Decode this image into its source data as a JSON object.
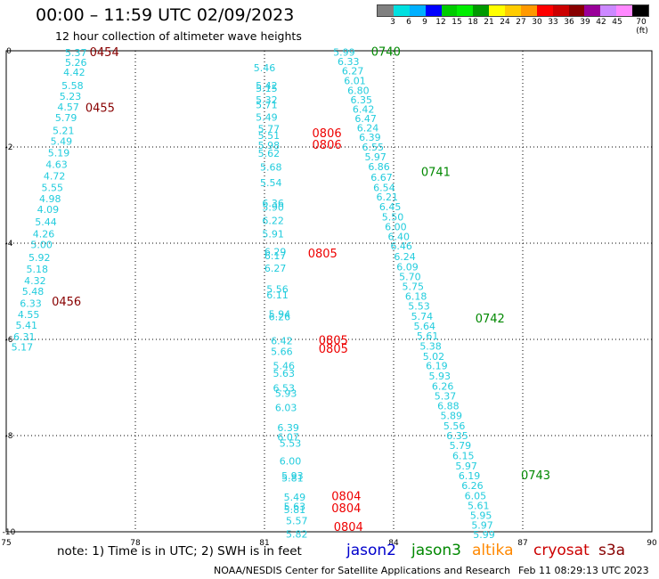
{
  "title": "00:00 – 11:59 UTC 02/09/2023",
  "subtitle": "12 hour collection of altimeter wave heights",
  "note": "note:  1) Time is in UTC; 2) SWH is in feet",
  "satellites": [
    {
      "name": "jason2",
      "color": "#0000cc"
    },
    {
      "name": "jason3",
      "color": "#008800"
    },
    {
      "name": "altika",
      "color": "#ff8800"
    },
    {
      "name": "cryosat",
      "color": "#cc0000"
    },
    {
      "name": "s3a",
      "color": "#880000"
    }
  ],
  "credit": "NOAA/NESDIS Center for Satellite Applications and Research",
  "timestamp": "Feb 11 08:29:13 UTC 2023",
  "colorbar": {
    "colors": [
      "#808080",
      "#00e0e0",
      "#00b0ff",
      "#0000ff",
      "#00cc00",
      "#00ee00",
      "#009900",
      "#ffff00",
      "#ffcc00",
      "#ff9900",
      "#ff0000",
      "#cc0000",
      "#880000",
      "#990099",
      "#cc88ff",
      "#ff88ff",
      "#000000"
    ],
    "labels": [
      "3",
      "6",
      "9",
      "12",
      "15",
      "18",
      "21",
      "24",
      "27",
      "30",
      "33",
      "36",
      "39",
      "42",
      "45",
      "70 (ft)"
    ]
  },
  "chart_data": {
    "type": "scatter",
    "title": "00:00 – 11:59 UTC 02/09/2023",
    "subtitle": "12 hour collection of altimeter wave heights",
    "xlim": [
      75,
      90
    ],
    "ylim": [
      -10,
      0
    ],
    "xticks": [
      "75",
      "78",
      "81",
      "84",
      "87",
      "90"
    ],
    "yticks": [
      "0",
      "-2",
      "-4",
      "-6",
      "-8",
      "-10"
    ],
    "grid": true,
    "series": [
      {
        "name": "swh",
        "color": "#22ccdd",
        "points": [
          [
            76.62,
            -0.04,
            "5.37"
          ],
          [
            76.62,
            -0.24,
            "5.26"
          ],
          [
            76.58,
            -0.44,
            "4.42"
          ],
          [
            76.54,
            -0.72,
            "5.58"
          ],
          [
            76.49,
            -0.94,
            "5.23"
          ],
          [
            76.44,
            -1.17,
            "4.57"
          ],
          [
            76.39,
            -1.39,
            "5.79"
          ],
          [
            76.33,
            -1.66,
            "5.21"
          ],
          [
            76.28,
            -1.88,
            "5.49"
          ],
          [
            76.22,
            -2.12,
            "5.19"
          ],
          [
            76.17,
            -2.36,
            "4.63"
          ],
          [
            76.12,
            -2.6,
            "4.72"
          ],
          [
            76.07,
            -2.84,
            "5.55"
          ],
          [
            76.02,
            -3.07,
            "4.98"
          ],
          [
            75.97,
            -3.3,
            "4.09"
          ],
          [
            75.92,
            -3.56,
            "5.44"
          ],
          [
            75.87,
            -3.81,
            "4.26"
          ],
          [
            75.82,
            -4.03,
            "5.00"
          ],
          [
            75.77,
            -4.3,
            "5.92"
          ],
          [
            75.72,
            -4.54,
            "5.18"
          ],
          [
            75.67,
            -4.78,
            "4.32"
          ],
          [
            75.62,
            -5.0,
            "5.48"
          ],
          [
            75.57,
            -5.25,
            "6.33"
          ],
          [
            75.52,
            -5.48,
            "4.55"
          ],
          [
            75.47,
            -5.7,
            "5.41"
          ],
          [
            75.42,
            -5.94,
            "6.31"
          ],
          [
            75.37,
            -6.16,
            "5.17"
          ],
          [
            81.0,
            -0.35,
            "5.46"
          ],
          [
            81.05,
            -0.72,
            "5.42"
          ],
          [
            81.05,
            -0.78,
            "5.15"
          ],
          [
            81.05,
            -1.02,
            "5.32"
          ],
          [
            81.05,
            -1.12,
            "5.71"
          ],
          [
            81.05,
            -1.38,
            "5.49"
          ],
          [
            81.1,
            -1.62,
            "5.77"
          ],
          [
            81.1,
            -1.76,
            "5.51"
          ],
          [
            81.1,
            -1.96,
            "5.98"
          ],
          [
            81.1,
            -2.13,
            "5.62"
          ],
          [
            81.15,
            -2.42,
            "5.68"
          ],
          [
            81.15,
            -2.74,
            "5.54"
          ],
          [
            81.2,
            -3.17,
            "6.36"
          ],
          [
            81.2,
            -3.25,
            "5.90"
          ],
          [
            81.2,
            -3.53,
            "6.22"
          ],
          [
            81.2,
            -3.81,
            "5.91"
          ],
          [
            81.25,
            -4.18,
            "6.29"
          ],
          [
            81.25,
            -4.26,
            "6.17"
          ],
          [
            81.25,
            -4.52,
            "6.27"
          ],
          [
            81.3,
            -4.95,
            "5.56"
          ],
          [
            81.3,
            -5.07,
            "6.11"
          ],
          [
            81.35,
            -5.47,
            "5.94"
          ],
          [
            81.35,
            -5.53,
            "6.26"
          ],
          [
            81.4,
            -6.03,
            "6.42"
          ],
          [
            81.4,
            -6.25,
            "5.66"
          ],
          [
            81.45,
            -6.55,
            "5.46"
          ],
          [
            81.45,
            -6.7,
            "5.63"
          ],
          [
            81.45,
            -7.01,
            "6.53"
          ],
          [
            81.5,
            -7.12,
            "5.93"
          ],
          [
            81.5,
            -7.42,
            "6.03"
          ],
          [
            81.55,
            -7.83,
            "6.39"
          ],
          [
            81.55,
            -8.03,
            "6.07"
          ],
          [
            81.6,
            -8.16,
            "5.53"
          ],
          [
            81.6,
            -8.53,
            "6.00"
          ],
          [
            81.65,
            -8.83,
            "5.93"
          ],
          [
            81.65,
            -8.88,
            "5.81"
          ],
          [
            81.7,
            -9.28,
            "5.49"
          ],
          [
            81.7,
            -9.47,
            "5.63"
          ],
          [
            81.7,
            -9.54,
            "5.81"
          ],
          [
            81.75,
            -9.77,
            "5.57"
          ],
          [
            81.75,
            -10.05,
            "5.82"
          ],
          [
            82.85,
            -0.03,
            "5.99"
          ],
          [
            82.95,
            -0.22,
            "6.33"
          ],
          [
            83.05,
            -0.42,
            "6.27"
          ],
          [
            83.1,
            -0.62,
            "6.01"
          ],
          [
            83.18,
            -0.82,
            "6.80"
          ],
          [
            83.25,
            -1.02,
            "6.35"
          ],
          [
            83.3,
            -1.21,
            "6.42"
          ],
          [
            83.35,
            -1.41,
            "6.47"
          ],
          [
            83.4,
            -1.6,
            "6.24"
          ],
          [
            83.45,
            -1.8,
            "6.39"
          ],
          [
            83.52,
            -2.0,
            "6.55"
          ],
          [
            83.58,
            -2.2,
            "5.97"
          ],
          [
            83.66,
            -2.41,
            "6.86"
          ],
          [
            83.72,
            -2.63,
            "6.67"
          ],
          [
            83.78,
            -2.84,
            "6.54"
          ],
          [
            83.85,
            -3.04,
            "6.21"
          ],
          [
            83.92,
            -3.24,
            "6.45"
          ],
          [
            83.98,
            -3.45,
            "5.50"
          ],
          [
            84.05,
            -3.66,
            "6.00"
          ],
          [
            84.12,
            -3.86,
            "6.40"
          ],
          [
            84.18,
            -4.06,
            "6.46"
          ],
          [
            84.26,
            -4.28,
            "6.24"
          ],
          [
            84.32,
            -4.49,
            "6.09"
          ],
          [
            84.38,
            -4.69,
            "5.70"
          ],
          [
            84.45,
            -4.9,
            "5.75"
          ],
          [
            84.52,
            -5.1,
            "6.18"
          ],
          [
            84.59,
            -5.31,
            "5.53"
          ],
          [
            84.66,
            -5.52,
            "5.74"
          ],
          [
            84.72,
            -5.72,
            "5.64"
          ],
          [
            84.79,
            -5.93,
            "5.61"
          ],
          [
            84.86,
            -6.14,
            "5.38"
          ],
          [
            84.93,
            -6.35,
            "5.02"
          ],
          [
            85.0,
            -6.55,
            "6.19"
          ],
          [
            85.07,
            -6.76,
            "5.93"
          ],
          [
            85.14,
            -6.97,
            "6.26"
          ],
          [
            85.2,
            -7.18,
            "5.37"
          ],
          [
            85.27,
            -7.38,
            "6.88"
          ],
          [
            85.34,
            -7.58,
            "5.89"
          ],
          [
            85.41,
            -7.8,
            "5.56"
          ],
          [
            85.48,
            -8.0,
            "6.35"
          ],
          [
            85.55,
            -8.2,
            "5.79"
          ],
          [
            85.62,
            -8.42,
            "6.15"
          ],
          [
            85.69,
            -8.63,
            "5.97"
          ],
          [
            85.76,
            -8.83,
            "6.19"
          ],
          [
            85.83,
            -9.04,
            "6.26"
          ],
          [
            85.9,
            -9.25,
            "6.05"
          ],
          [
            85.97,
            -9.45,
            "5.61"
          ],
          [
            86.03,
            -9.66,
            "5.95"
          ],
          [
            86.06,
            -9.86,
            "5.97"
          ],
          [
            86.1,
            -10.06,
            "5.99"
          ]
        ]
      },
      {
        "name": "time",
        "color": "#880000",
        "points": [
          [
            77.28,
            -0.04,
            "0454"
          ],
          [
            77.18,
            -1.19,
            "0455"
          ],
          [
            76.4,
            -5.22,
            "0456"
          ]
        ]
      },
      {
        "name": "time",
        "color": "#008800",
        "points": [
          [
            83.82,
            -0.03,
            "0740"
          ],
          [
            84.98,
            -2.53,
            "0741"
          ],
          [
            86.24,
            -5.57,
            "0742"
          ],
          [
            87.3,
            -8.83,
            "0743"
          ]
        ]
      },
      {
        "name": "time",
        "color": "#ee0000",
        "points": [
          [
            82.45,
            -1.72,
            "0806"
          ],
          [
            82.45,
            -1.96,
            "0806"
          ],
          [
            82.35,
            -4.22,
            "0805"
          ],
          [
            82.6,
            -6.03,
            "0805"
          ],
          [
            82.6,
            -6.2,
            "0805"
          ],
          [
            82.9,
            -9.27,
            "0804"
          ],
          [
            82.9,
            -9.52,
            "0804"
          ],
          [
            82.95,
            -9.91,
            "0804"
          ]
        ]
      }
    ]
  }
}
